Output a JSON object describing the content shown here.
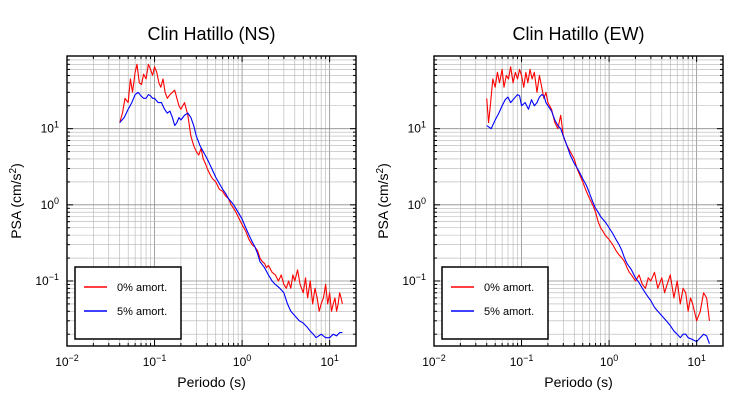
{
  "chart_data": [
    {
      "type": "line",
      "title": "Clin Hatillo (NS)",
      "xlabel": "Periodo (s)",
      "ylabel": "PSA (cm/s²)",
      "xscale": "log",
      "yscale": "log",
      "xlim": [
        0.01,
        20
      ],
      "ylim": [
        0.014,
        90
      ],
      "xticks": [
        {
          "base": "10",
          "exp": "−2"
        },
        {
          "base": "10",
          "exp": "−1"
        },
        {
          "base": "10",
          "exp": "0"
        },
        {
          "base": "10",
          "exp": "1"
        }
      ],
      "yticks": [
        {
          "base": "10",
          "exp": "−1"
        },
        {
          "base": "10",
          "exp": "0"
        },
        {
          "base": "10",
          "exp": "1"
        }
      ],
      "grid": true,
      "legend_position": "bottom-left",
      "series": [
        {
          "name": "0% amort.",
          "color": "#ff0000",
          "x": [
            0.04,
            0.043,
            0.046,
            0.05,
            0.053,
            0.056,
            0.06,
            0.063,
            0.067,
            0.071,
            0.075,
            0.08,
            0.085,
            0.09,
            0.095,
            0.1,
            0.106,
            0.112,
            0.118,
            0.125,
            0.132,
            0.14,
            0.15,
            0.16,
            0.17,
            0.18,
            0.19,
            0.2,
            0.21,
            0.22,
            0.24,
            0.26,
            0.28,
            0.3,
            0.32,
            0.34,
            0.36,
            0.38,
            0.4,
            0.43,
            0.46,
            0.5,
            0.55,
            0.6,
            0.65,
            0.7,
            0.75,
            0.8,
            0.85,
            0.9,
            1.0,
            1.1,
            1.2,
            1.3,
            1.4,
            1.5,
            1.6,
            1.7,
            1.8,
            1.9,
            2.0,
            2.2,
            2.4,
            2.6,
            2.8,
            3.0,
            3.2,
            3.4,
            3.6,
            3.8,
            4.0,
            4.3,
            4.6,
            5.0,
            5.3,
            5.6,
            6.0,
            6.4,
            6.8,
            7.2,
            7.6,
            8.0,
            8.5,
            9.0,
            9.5,
            10,
            10.5,
            11,
            11.5,
            12,
            12.5,
            13,
            13.5,
            14
          ],
          "y": [
            12,
            16,
            25,
            22,
            45,
            30,
            55,
            70,
            40,
            38,
            52,
            45,
            70,
            60,
            50,
            65,
            55,
            40,
            35,
            45,
            30,
            25,
            28,
            30,
            32,
            25,
            20,
            18,
            20,
            22,
            15,
            8,
            6,
            5,
            4.5,
            5.5,
            4,
            3.5,
            3,
            2.5,
            2.2,
            2,
            1.6,
            1.5,
            1.3,
            1.2,
            1,
            0.9,
            0.8,
            0.7,
            0.55,
            0.45,
            0.35,
            0.3,
            0.28,
            0.25,
            0.2,
            0.18,
            0.17,
            0.15,
            0.16,
            0.13,
            0.12,
            0.1,
            0.12,
            0.09,
            0.08,
            0.1,
            0.08,
            0.12,
            0.1,
            0.14,
            0.09,
            0.07,
            0.11,
            0.06,
            0.1,
            0.05,
            0.08,
            0.06,
            0.04,
            0.05,
            0.06,
            0.09,
            0.05,
            0.07,
            0.04,
            0.05,
            0.06,
            0.04,
            0.05,
            0.07,
            0.06,
            0.05
          ]
        },
        {
          "name": "5% amort.",
          "color": "#0000ff",
          "x": [
            0.04,
            0.045,
            0.05,
            0.055,
            0.06,
            0.065,
            0.07,
            0.075,
            0.08,
            0.085,
            0.09,
            0.095,
            0.1,
            0.11,
            0.12,
            0.13,
            0.14,
            0.15,
            0.16,
            0.17,
            0.18,
            0.19,
            0.2,
            0.22,
            0.24,
            0.26,
            0.28,
            0.3,
            0.33,
            0.36,
            0.4,
            0.45,
            0.5,
            0.55,
            0.6,
            0.65,
            0.7,
            0.75,
            0.8,
            0.9,
            1.0,
            1.1,
            1.2,
            1.3,
            1.4,
            1.5,
            1.6,
            1.8,
            2.0,
            2.2,
            2.4,
            2.7,
            3.0,
            3.3,
            3.6,
            4.0,
            4.5,
            5.0,
            5.5,
            6.0,
            6.5,
            7.0,
            7.5,
            8.0,
            9.0,
            10,
            11,
            12,
            13,
            14
          ],
          "y": [
            12,
            14,
            18,
            22,
            28,
            30,
            27,
            25,
            25,
            28,
            27,
            25,
            25,
            22,
            22,
            18,
            16,
            17,
            14,
            11,
            12,
            14,
            13,
            15,
            16,
            14,
            11,
            8,
            6,
            5,
            4,
            3,
            2.3,
            1.9,
            1.6,
            1.4,
            1.2,
            1.1,
            1,
            0.8,
            0.65,
            0.5,
            0.4,
            0.33,
            0.28,
            0.23,
            0.18,
            0.15,
            0.12,
            0.1,
            0.09,
            0.08,
            0.07,
            0.05,
            0.04,
            0.035,
            0.03,
            0.028,
            0.025,
            0.022,
            0.02,
            0.018,
            0.019,
            0.02,
            0.018,
            0.018,
            0.02,
            0.019,
            0.021,
            0.021
          ]
        }
      ]
    },
    {
      "type": "line",
      "title": "Clin Hatillo (EW)",
      "xlabel": "Periodo (s)",
      "ylabel": "PSA (cm/s²)",
      "xscale": "log",
      "yscale": "log",
      "xlim": [
        0.01,
        20
      ],
      "ylim": [
        0.014,
        90
      ],
      "xticks": [
        {
          "base": "10",
          "exp": "−2"
        },
        {
          "base": "10",
          "exp": "−1"
        },
        {
          "base": "10",
          "exp": "0"
        },
        {
          "base": "10",
          "exp": "1"
        }
      ],
      "yticks": [
        {
          "base": "10",
          "exp": "−1"
        },
        {
          "base": "10",
          "exp": "0"
        },
        {
          "base": "10",
          "exp": "1"
        }
      ],
      "grid": true,
      "legend_position": "bottom-left",
      "series": [
        {
          "name": "0% amort.",
          "color": "#ff0000",
          "x": [
            0.04,
            0.042,
            0.044,
            0.047,
            0.05,
            0.053,
            0.056,
            0.06,
            0.063,
            0.067,
            0.071,
            0.075,
            0.08,
            0.085,
            0.09,
            0.095,
            0.1,
            0.106,
            0.112,
            0.118,
            0.125,
            0.132,
            0.14,
            0.15,
            0.16,
            0.17,
            0.18,
            0.19,
            0.2,
            0.22,
            0.24,
            0.26,
            0.28,
            0.3,
            0.33,
            0.36,
            0.4,
            0.43,
            0.46,
            0.5,
            0.55,
            0.6,
            0.65,
            0.7,
            0.75,
            0.8,
            0.85,
            0.9,
            1.0,
            1.1,
            1.2,
            1.3,
            1.4,
            1.5,
            1.6,
            1.7,
            1.8,
            2.0,
            2.2,
            2.4,
            2.6,
            2.8,
            3.0,
            3.3,
            3.6,
            4.0,
            4.3,
            4.6,
            5.0,
            5.5,
            6.0,
            6.5,
            7.0,
            7.5,
            8.0,
            8.5,
            9.0,
            10,
            11,
            12,
            13,
            14
          ],
          "y": [
            25,
            12,
            20,
            45,
            35,
            55,
            40,
            60,
            35,
            50,
            45,
            65,
            40,
            55,
            45,
            60,
            50,
            35,
            55,
            40,
            60,
            45,
            55,
            30,
            50,
            35,
            25,
            30,
            22,
            18,
            12,
            10,
            15,
            8,
            6,
            5,
            4,
            3,
            2.5,
            2,
            1.5,
            1.2,
            1,
            0.8,
            0.6,
            0.5,
            0.45,
            0.4,
            0.35,
            0.3,
            0.25,
            0.22,
            0.2,
            0.18,
            0.15,
            0.13,
            0.12,
            0.1,
            0.12,
            0.09,
            0.08,
            0.11,
            0.1,
            0.13,
            0.08,
            0.11,
            0.07,
            0.09,
            0.12,
            0.06,
            0.1,
            0.05,
            0.08,
            0.07,
            0.04,
            0.06,
            0.05,
            0.03,
            0.04,
            0.07,
            0.06,
            0.03
          ]
        },
        {
          "name": "5% amort.",
          "color": "#0000ff",
          "x": [
            0.04,
            0.045,
            0.05,
            0.055,
            0.06,
            0.065,
            0.07,
            0.075,
            0.08,
            0.085,
            0.09,
            0.095,
            0.1,
            0.11,
            0.12,
            0.13,
            0.14,
            0.15,
            0.16,
            0.17,
            0.18,
            0.19,
            0.2,
            0.22,
            0.24,
            0.26,
            0.28,
            0.3,
            0.33,
            0.36,
            0.4,
            0.45,
            0.5,
            0.55,
            0.6,
            0.65,
            0.7,
            0.75,
            0.8,
            0.9,
            1.0,
            1.1,
            1.2,
            1.3,
            1.4,
            1.5,
            1.6,
            1.8,
            2.0,
            2.2,
            2.4,
            2.7,
            3.0,
            3.3,
            3.6,
            4.0,
            4.5,
            5.0,
            5.5,
            6.0,
            6.5,
            7.0,
            7.5,
            8.0,
            9.0,
            10,
            11,
            12,
            13,
            14
          ],
          "y": [
            11,
            10,
            13,
            16,
            20,
            24,
            26,
            22,
            24,
            26,
            28,
            27,
            20,
            22,
            18,
            24,
            20,
            22,
            26,
            28,
            27,
            22,
            20,
            17,
            13,
            11,
            10,
            8,
            6,
            4.5,
            3.5,
            2.8,
            2.2,
            1.8,
            1.4,
            1.1,
            0.9,
            0.8,
            0.7,
            0.6,
            0.5,
            0.42,
            0.35,
            0.3,
            0.25,
            0.2,
            0.17,
            0.14,
            0.11,
            0.095,
            0.08,
            0.065,
            0.055,
            0.045,
            0.04,
            0.035,
            0.03,
            0.026,
            0.022,
            0.02,
            0.018,
            0.02,
            0.02,
            0.018,
            0.017,
            0.016,
            0.018,
            0.02,
            0.019,
            0.015
          ]
        }
      ]
    }
  ]
}
